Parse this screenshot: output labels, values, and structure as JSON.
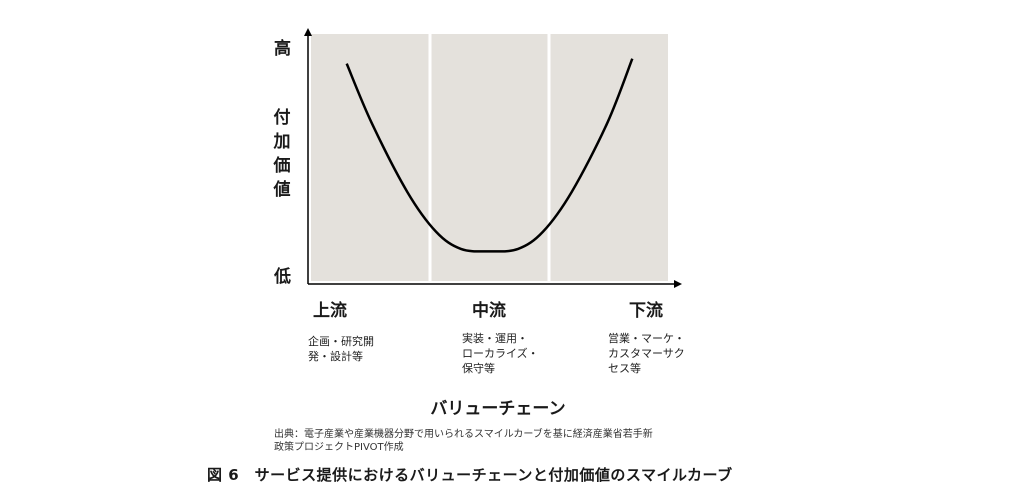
{
  "chart_data": {
    "type": "line",
    "title": "",
    "y_axis": {
      "high_label": "高",
      "low_label": "低",
      "title": "付加価値"
    },
    "x_axis": {
      "title": "バリューチェーン"
    },
    "stages": [
      {
        "label": "上流",
        "description": [
          "企画・研究開",
          "発・設計等"
        ]
      },
      {
        "label": "中流",
        "description": [
          "実装・運用・",
          "ローカライズ・",
          "保守等"
        ]
      },
      {
        "label": "下流",
        "description": [
          "営業・マーケ・",
          "カスタマーサク",
          "セス等"
        ]
      }
    ],
    "series": [
      {
        "x": [
          0.1,
          0.17,
          0.27,
          0.35,
          0.42,
          0.5,
          0.58,
          0.65,
          0.73,
          0.83,
          0.9
        ],
        "y": [
          0.88,
          0.64,
          0.36,
          0.2,
          0.13,
          0.12,
          0.13,
          0.2,
          0.36,
          0.64,
          0.9
        ]
      }
    ],
    "xlim": [
      0,
      1
    ],
    "ylim": [
      0,
      1
    ],
    "grid": false
  },
  "source_note": [
    "出典：電子産業や産業機器分野で用いられるスマイルカーブを基に経済産業省若手新",
    "政策プロジェクトPIVOT作成"
  ],
  "figure_caption": "図 6　サービス提供におけるバリューチェーンと付加価値のスマイルカーブ",
  "colors": {
    "panel": "#e4e1dc",
    "divider": "#ffffff",
    "curve": "#000000",
    "axis": "#000000"
  }
}
